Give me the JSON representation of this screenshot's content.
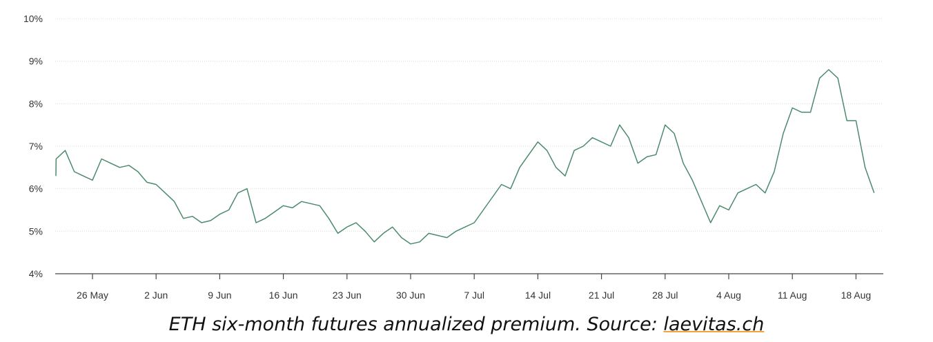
{
  "caption": {
    "text": "ETH six-month futures annualized premium. Source: ",
    "link": "laevitas.ch"
  },
  "colors": {
    "line": "#4a8a6c",
    "link_underline": "#f2a33a"
  },
  "chart_data": {
    "type": "line",
    "title": "",
    "xlabel": "",
    "ylabel": "",
    "x_tick_labels": [
      "26 May",
      "2 Jun",
      "9 Jun",
      "16 Jun",
      "23 Jun",
      "30 Jun",
      "7 Jul",
      "14 Jul",
      "21 Jul",
      "28 Jul",
      "4 Aug",
      "11 Aug",
      "18 Aug"
    ],
    "y_tick_labels": [
      "4%",
      "5%",
      "6%",
      "7%",
      "8%",
      "9%",
      "10%"
    ],
    "ylim": [
      4,
      10
    ],
    "grid": "horizontal",
    "legend": "none",
    "series": [
      {
        "x": [
          "2021-05-21",
          "2021-05-22",
          "2021-05-23",
          "2021-05-24",
          "2021-05-25",
          "2021-05-26",
          "2021-05-27",
          "2021-05-28",
          "2021-05-29",
          "2021-05-30",
          "2021-05-31",
          "2021-06-01",
          "2021-06-02",
          "2021-06-03",
          "2021-06-04",
          "2021-06-05",
          "2021-06-06",
          "2021-06-07",
          "2021-06-08",
          "2021-06-09",
          "2021-06-10",
          "2021-06-11",
          "2021-06-12",
          "2021-06-13",
          "2021-06-14",
          "2021-06-15",
          "2021-06-16",
          "2021-06-17",
          "2021-06-18",
          "2021-06-19",
          "2021-06-20",
          "2021-06-21",
          "2021-06-22",
          "2021-06-23",
          "2021-06-24",
          "2021-06-25",
          "2021-06-26",
          "2021-06-27",
          "2021-06-28",
          "2021-06-29",
          "2021-06-30",
          "2021-07-01",
          "2021-07-02",
          "2021-07-03",
          "2021-07-04",
          "2021-07-05",
          "2021-07-06",
          "2021-07-07",
          "2021-07-08",
          "2021-07-09",
          "2021-07-10",
          "2021-07-11",
          "2021-07-12",
          "2021-07-13",
          "2021-07-14",
          "2021-07-15",
          "2021-07-16",
          "2021-07-17",
          "2021-07-18",
          "2021-07-19",
          "2021-07-20",
          "2021-07-21",
          "2021-07-22",
          "2021-07-23",
          "2021-07-24",
          "2021-07-25",
          "2021-07-26",
          "2021-07-27",
          "2021-07-28",
          "2021-07-29",
          "2021-07-30",
          "2021-07-31",
          "2021-08-01",
          "2021-08-02",
          "2021-08-03",
          "2021-08-04",
          "2021-08-05",
          "2021-08-06",
          "2021-08-07",
          "2021-08-08",
          "2021-08-09",
          "2021-08-10",
          "2021-08-11",
          "2021-08-12",
          "2021-08-13",
          "2021-08-14",
          "2021-08-15",
          "2021-08-16",
          "2021-08-17",
          "2021-08-18",
          "2021-08-19",
          "2021-08-20"
        ],
        "values": [
          6.3,
          6.7,
          6.9,
          6.4,
          6.3,
          6.2,
          6.7,
          6.6,
          6.5,
          6.55,
          6.4,
          6.15,
          6.1,
          5.9,
          5.7,
          5.3,
          5.35,
          5.2,
          5.25,
          5.4,
          5.5,
          5.9,
          6.0,
          5.2,
          5.3,
          5.45,
          5.6,
          5.55,
          5.7,
          5.65,
          5.6,
          5.3,
          4.95,
          5.1,
          5.2,
          5.0,
          4.75,
          4.95,
          5.1,
          4.85,
          4.7,
          4.75,
          4.95,
          4.9,
          4.85,
          5.0,
          5.1,
          5.2,
          5.5,
          5.8,
          6.1,
          6.0,
          6.5,
          6.8,
          7.1,
          6.9,
          6.5,
          6.3,
          6.9,
          7.0,
          7.2,
          7.1,
          7.0,
          7.5,
          7.2,
          6.6,
          6.75,
          6.8,
          7.5,
          7.3,
          6.6,
          6.2,
          5.7,
          5.2,
          5.6,
          5.5,
          5.9,
          6.0,
          6.1,
          5.9,
          6.4,
          7.3,
          7.9,
          7.8,
          7.8,
          8.6,
          8.8,
          8.6,
          7.6,
          7.6,
          6.5,
          5.9
        ]
      }
    ]
  }
}
